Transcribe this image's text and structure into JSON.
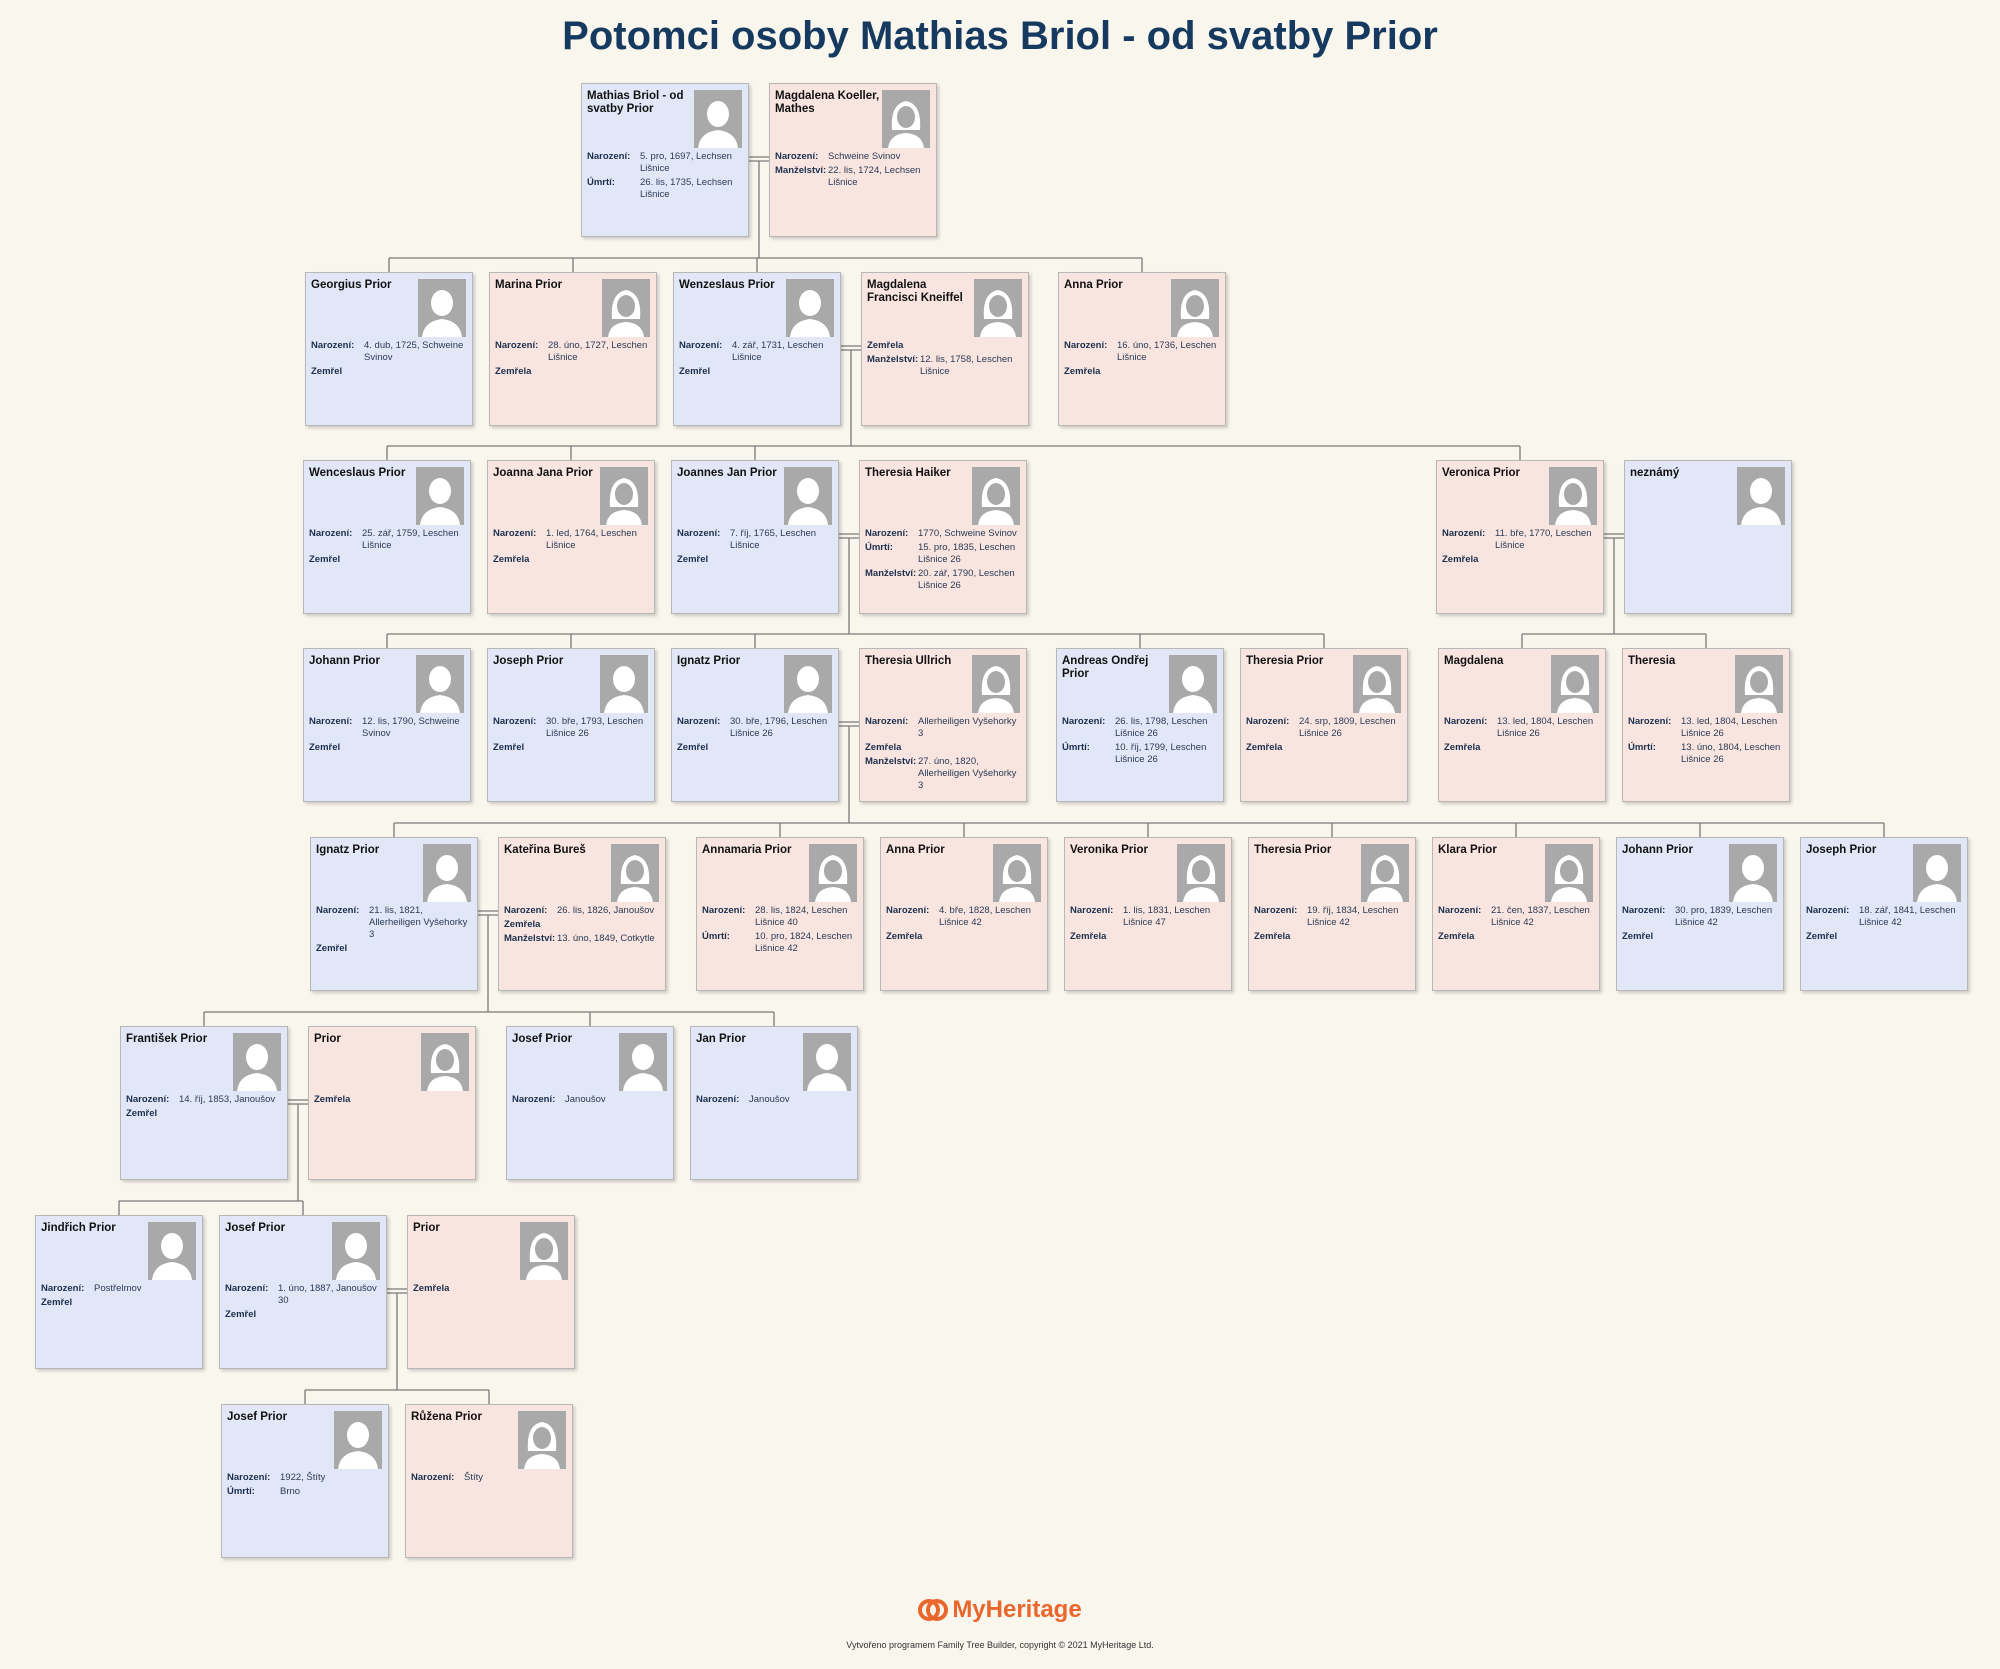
{
  "title": "Potomci osoby Mathias Briol - od svatby Prior",
  "people": [
    {
      "id": "mathias",
      "name": "Mathias Briol - od svatby Prior",
      "gender": "male",
      "facts": [
        {
          "label": "Narození:",
          "value": "5. pro, 1697, Lechsen Lišnice"
        },
        {
          "label": "Úmrtí:",
          "value": "26. lis, 1735, Lechsen Lišnice"
        }
      ]
    },
    {
      "id": "magdalena_k",
      "name": "Magdalena Koeller, Mathes",
      "gender": "female",
      "facts": [
        {
          "label": "Narození:",
          "value": "Schweine Svinov"
        },
        {
          "label": "Manželství:",
          "value": "22. lis, 1724, Lechsen Lišnice"
        }
      ]
    },
    {
      "id": "georgius",
      "name": "Georgius Prior",
      "gender": "male",
      "facts": [
        {
          "label": "Narození:",
          "value": "4. dub, 1725, Schweine Svinov"
        },
        {
          "label": "Zemřel",
          "value": ""
        }
      ]
    },
    {
      "id": "marina",
      "name": "Marina Prior",
      "gender": "female",
      "facts": [
        {
          "label": "Narození:",
          "value": "28. úno, 1727, Leschen Lišnice"
        },
        {
          "label": "Zemřela",
          "value": ""
        }
      ]
    },
    {
      "id": "wenzeslaus",
      "name": "Wenzeslaus Prior",
      "gender": "male",
      "facts": [
        {
          "label": "Narození:",
          "value": "4. zář, 1731, Leschen Lišnice"
        },
        {
          "label": "Zemřel",
          "value": ""
        }
      ]
    },
    {
      "id": "magdalena_f",
      "name": "Magdalena Francisci Kneiffel",
      "gender": "female",
      "facts": [
        {
          "label": "Zemřela",
          "value": ""
        },
        {
          "label": "Manželství:",
          "value": "12. lis, 1758, Leschen Lišnice"
        }
      ]
    },
    {
      "id": "anna1",
      "name": "Anna Prior",
      "gender": "female",
      "facts": [
        {
          "label": "Narození:",
          "value": "16. úno, 1736, Leschen Lišnice"
        },
        {
          "label": "Zemřela",
          "value": ""
        }
      ]
    },
    {
      "id": "wenceslaus",
      "name": "Wenceslaus Prior",
      "gender": "male",
      "facts": [
        {
          "label": "Narození:",
          "value": "25. zář, 1759, Leschen Lišnice"
        },
        {
          "label": "Zemřel",
          "value": ""
        }
      ]
    },
    {
      "id": "joanna",
      "name": "Joanna  Jana Prior",
      "gender": "female",
      "facts": [
        {
          "label": "Narození:",
          "value": "1. led, 1764, Leschen Lišnice"
        },
        {
          "label": "Zemřela",
          "value": ""
        }
      ]
    },
    {
      "id": "joannes",
      "name": "Joannes Jan Prior",
      "gender": "male",
      "facts": [
        {
          "label": "Narození:",
          "value": "7. říj, 1765, Leschen Lišnice"
        },
        {
          "label": "Zemřel",
          "value": ""
        }
      ]
    },
    {
      "id": "theresia_h",
      "name": "Theresia Haiker",
      "gender": "female",
      "facts": [
        {
          "label": "Narození:",
          "value": "1770, Schweine Svinov"
        },
        {
          "label": "Úmrtí:",
          "value": "15. pro, 1835, Leschen Lišnice 26"
        },
        {
          "label": "Manželství:",
          "value": "20. zář, 1790, Leschen Lišnice 26"
        }
      ]
    },
    {
      "id": "veronica",
      "name": "Veronica Prior",
      "gender": "female",
      "facts": [
        {
          "label": "Narození:",
          "value": "11. bře, 1770, Leschen Lišnice"
        },
        {
          "label": "Zemřela",
          "value": ""
        }
      ]
    },
    {
      "id": "neznamy",
      "name": "neznámý",
      "gender": "male",
      "facts": []
    },
    {
      "id": "johann1",
      "name": "Johann Prior",
      "gender": "male",
      "facts": [
        {
          "label": "Narození:",
          "value": "12. lis, 1790, Schweine Svinov"
        },
        {
          "label": "Zemřel",
          "value": ""
        }
      ]
    },
    {
      "id": "joseph1",
      "name": "Joseph Prior",
      "gender": "male",
      "facts": [
        {
          "label": "Narození:",
          "value": "30. bře, 1793, Leschen Lišnice 26"
        },
        {
          "label": "Zemřel",
          "value": ""
        }
      ]
    },
    {
      "id": "ignatz1",
      "name": "Ignatz Prior",
      "gender": "male",
      "facts": [
        {
          "label": "Narození:",
          "value": "30. bře, 1796, Leschen Lišnice 26"
        },
        {
          "label": "Zemřel",
          "value": ""
        }
      ]
    },
    {
      "id": "theresia_u",
      "name": "Theresia Ullrich",
      "gender": "female",
      "facts": [
        {
          "label": "Narození:",
          "value": "Allerheiligen Vyšehorky 3"
        },
        {
          "label": "Zemřela",
          "value": ""
        },
        {
          "label": "Manželství:",
          "value": "27. úno, 1820, Allerheiligen Vyšehorky 3"
        }
      ]
    },
    {
      "id": "andreas",
      "name": "Andreas Ondřej Prior",
      "gender": "male",
      "facts": [
        {
          "label": "Narození:",
          "value": "26. lis, 1798, Leschen Lišnice 26"
        },
        {
          "label": "Úmrtí:",
          "value": "10. říj, 1799, Leschen Lišnice 26"
        }
      ]
    },
    {
      "id": "theresia_p",
      "name": "Theresia Prior",
      "gender": "female",
      "facts": [
        {
          "label": "Narození:",
          "value": "24. srp, 1809, Leschen Lišnice 26"
        },
        {
          "label": "Zemřela",
          "value": ""
        }
      ]
    },
    {
      "id": "magdalena3",
      "name": "Magdalena",
      "gender": "female",
      "facts": [
        {
          "label": "Narození:",
          "value": "13. led, 1804, Leschen Lišnice 26"
        },
        {
          "label": "Zemřela",
          "value": ""
        }
      ]
    },
    {
      "id": "theresia3",
      "name": "Theresia",
      "gender": "female",
      "facts": [
        {
          "label": "Narození:",
          "value": "13. led, 1804, Leschen Lišnice 26"
        },
        {
          "label": "Úmrtí:",
          "value": "13. úno, 1804, Leschen Lišnice 26"
        }
      ]
    },
    {
      "id": "ignatz2",
      "name": "Ignatz Prior",
      "gender": "male",
      "facts": [
        {
          "label": "Narození:",
          "value": "21. lis, 1821, Allerheiligen Vyšehorky 3"
        },
        {
          "label": "Zemřel",
          "value": ""
        }
      ]
    },
    {
      "id": "katerina",
      "name": "Kateřina Bureš",
      "gender": "female",
      "facts": [
        {
          "label": "Narození:",
          "value": "26. lis, 1826, Janoušov"
        },
        {
          "label": "Zemřela",
          "value": ""
        },
        {
          "label": "Manželství:",
          "value": "13. úno, 1849, Cotkytle"
        }
      ]
    },
    {
      "id": "annamaria",
      "name": "Annamaria Prior",
      "gender": "female",
      "facts": [
        {
          "label": "Narození:",
          "value": "28. lis, 1824, Leschen Lišnice 40"
        },
        {
          "label": "Úmrtí:",
          "value": "10. pro, 1824, Leschen Lišnice 42"
        }
      ]
    },
    {
      "id": "anna2",
      "name": "Anna Prior",
      "gender": "female",
      "facts": [
        {
          "label": "Narození:",
          "value": "4. bře, 1828, Leschen Lišnice 42"
        },
        {
          "label": "Zemřela",
          "value": ""
        }
      ]
    },
    {
      "id": "veronika",
      "name": "Veronika Prior",
      "gender": "female",
      "facts": [
        {
          "label": "Narození:",
          "value": "1. lis, 1831, Leschen Lišnice 47"
        },
        {
          "label": "Zemřela",
          "value": ""
        }
      ]
    },
    {
      "id": "theresia4",
      "name": "Theresia Prior",
      "gender": "female",
      "facts": [
        {
          "label": "Narození:",
          "value": "19. říj, 1834, Leschen Lišnice 42"
        },
        {
          "label": "Zemřela",
          "value": ""
        }
      ]
    },
    {
      "id": "klara",
      "name": "Klara Prior",
      "gender": "female",
      "facts": [
        {
          "label": "Narození:",
          "value": "21. čen, 1837, Leschen Lišnice 42"
        },
        {
          "label": "Zemřela",
          "value": ""
        }
      ]
    },
    {
      "id": "johann2",
      "name": "Johann Prior",
      "gender": "male",
      "facts": [
        {
          "label": "Narození:",
          "value": "30. pro, 1839, Leschen Lišnice 42"
        },
        {
          "label": "Zemřel",
          "value": ""
        }
      ]
    },
    {
      "id": "joseph2",
      "name": "Joseph Prior",
      "gender": "male",
      "facts": [
        {
          "label": "Narození:",
          "value": "18. zář, 1841, Leschen Lišnice 42"
        },
        {
          "label": "Zemřel",
          "value": ""
        }
      ]
    },
    {
      "id": "frantisek",
      "name": "František Prior",
      "gender": "male",
      "facts": [
        {
          "label": "Narození:",
          "value": "14. říj, 1853, Janoušov"
        },
        {
          "label": "Zemřel",
          "value": ""
        }
      ]
    },
    {
      "id": "prior_w1",
      "name": "Prior",
      "gender": "female",
      "facts": [
        {
          "label": "Zemřela",
          "value": ""
        }
      ]
    },
    {
      "id": "josef1",
      "name": "Josef Prior",
      "gender": "male",
      "facts": [
        {
          "label": "Narození:",
          "value": "Janoušov"
        }
      ]
    },
    {
      "id": "jan",
      "name": "Jan Prior",
      "gender": "male",
      "facts": [
        {
          "label": "Narození:",
          "value": "Janoušov"
        }
      ]
    },
    {
      "id": "jindrich",
      "name": "Jindřich Prior",
      "gender": "male",
      "facts": [
        {
          "label": "Narození:",
          "value": "Postřelmov"
        },
        {
          "label": "Zemřel",
          "value": ""
        }
      ]
    },
    {
      "id": "josef2",
      "name": "Josef Prior",
      "gender": "male",
      "facts": [
        {
          "label": "Narození:",
          "value": "1. úno, 1887, Janoušov 30"
        },
        {
          "label": "Zemřel",
          "value": ""
        }
      ]
    },
    {
      "id": "prior_w2",
      "name": "Prior",
      "gender": "female",
      "facts": [
        {
          "label": "Zemřela",
          "value": ""
        }
      ]
    },
    {
      "id": "josef3",
      "name": "Josef Prior",
      "gender": "male",
      "facts": [
        {
          "label": "Narození:",
          "value": "1922, Štíty"
        },
        {
          "label": "Úmrtí:",
          "value": "Brno"
        }
      ]
    },
    {
      "id": "ruzena",
      "name": "Růžena Prior",
      "gender": "female",
      "facts": [
        {
          "label": "Narození:",
          "value": "Štíty"
        }
      ]
    }
  ],
  "footer": {
    "logo_text": "MyHeritage",
    "copyright": "Vytvořeno programem Family Tree Builder, copyright © 2021 MyHeritage Ltd."
  },
  "colors": {
    "male_card": "#e2e7f7",
    "female_card": "#f9e5df",
    "title": "#163a5f",
    "logo": "#e9672c"
  }
}
